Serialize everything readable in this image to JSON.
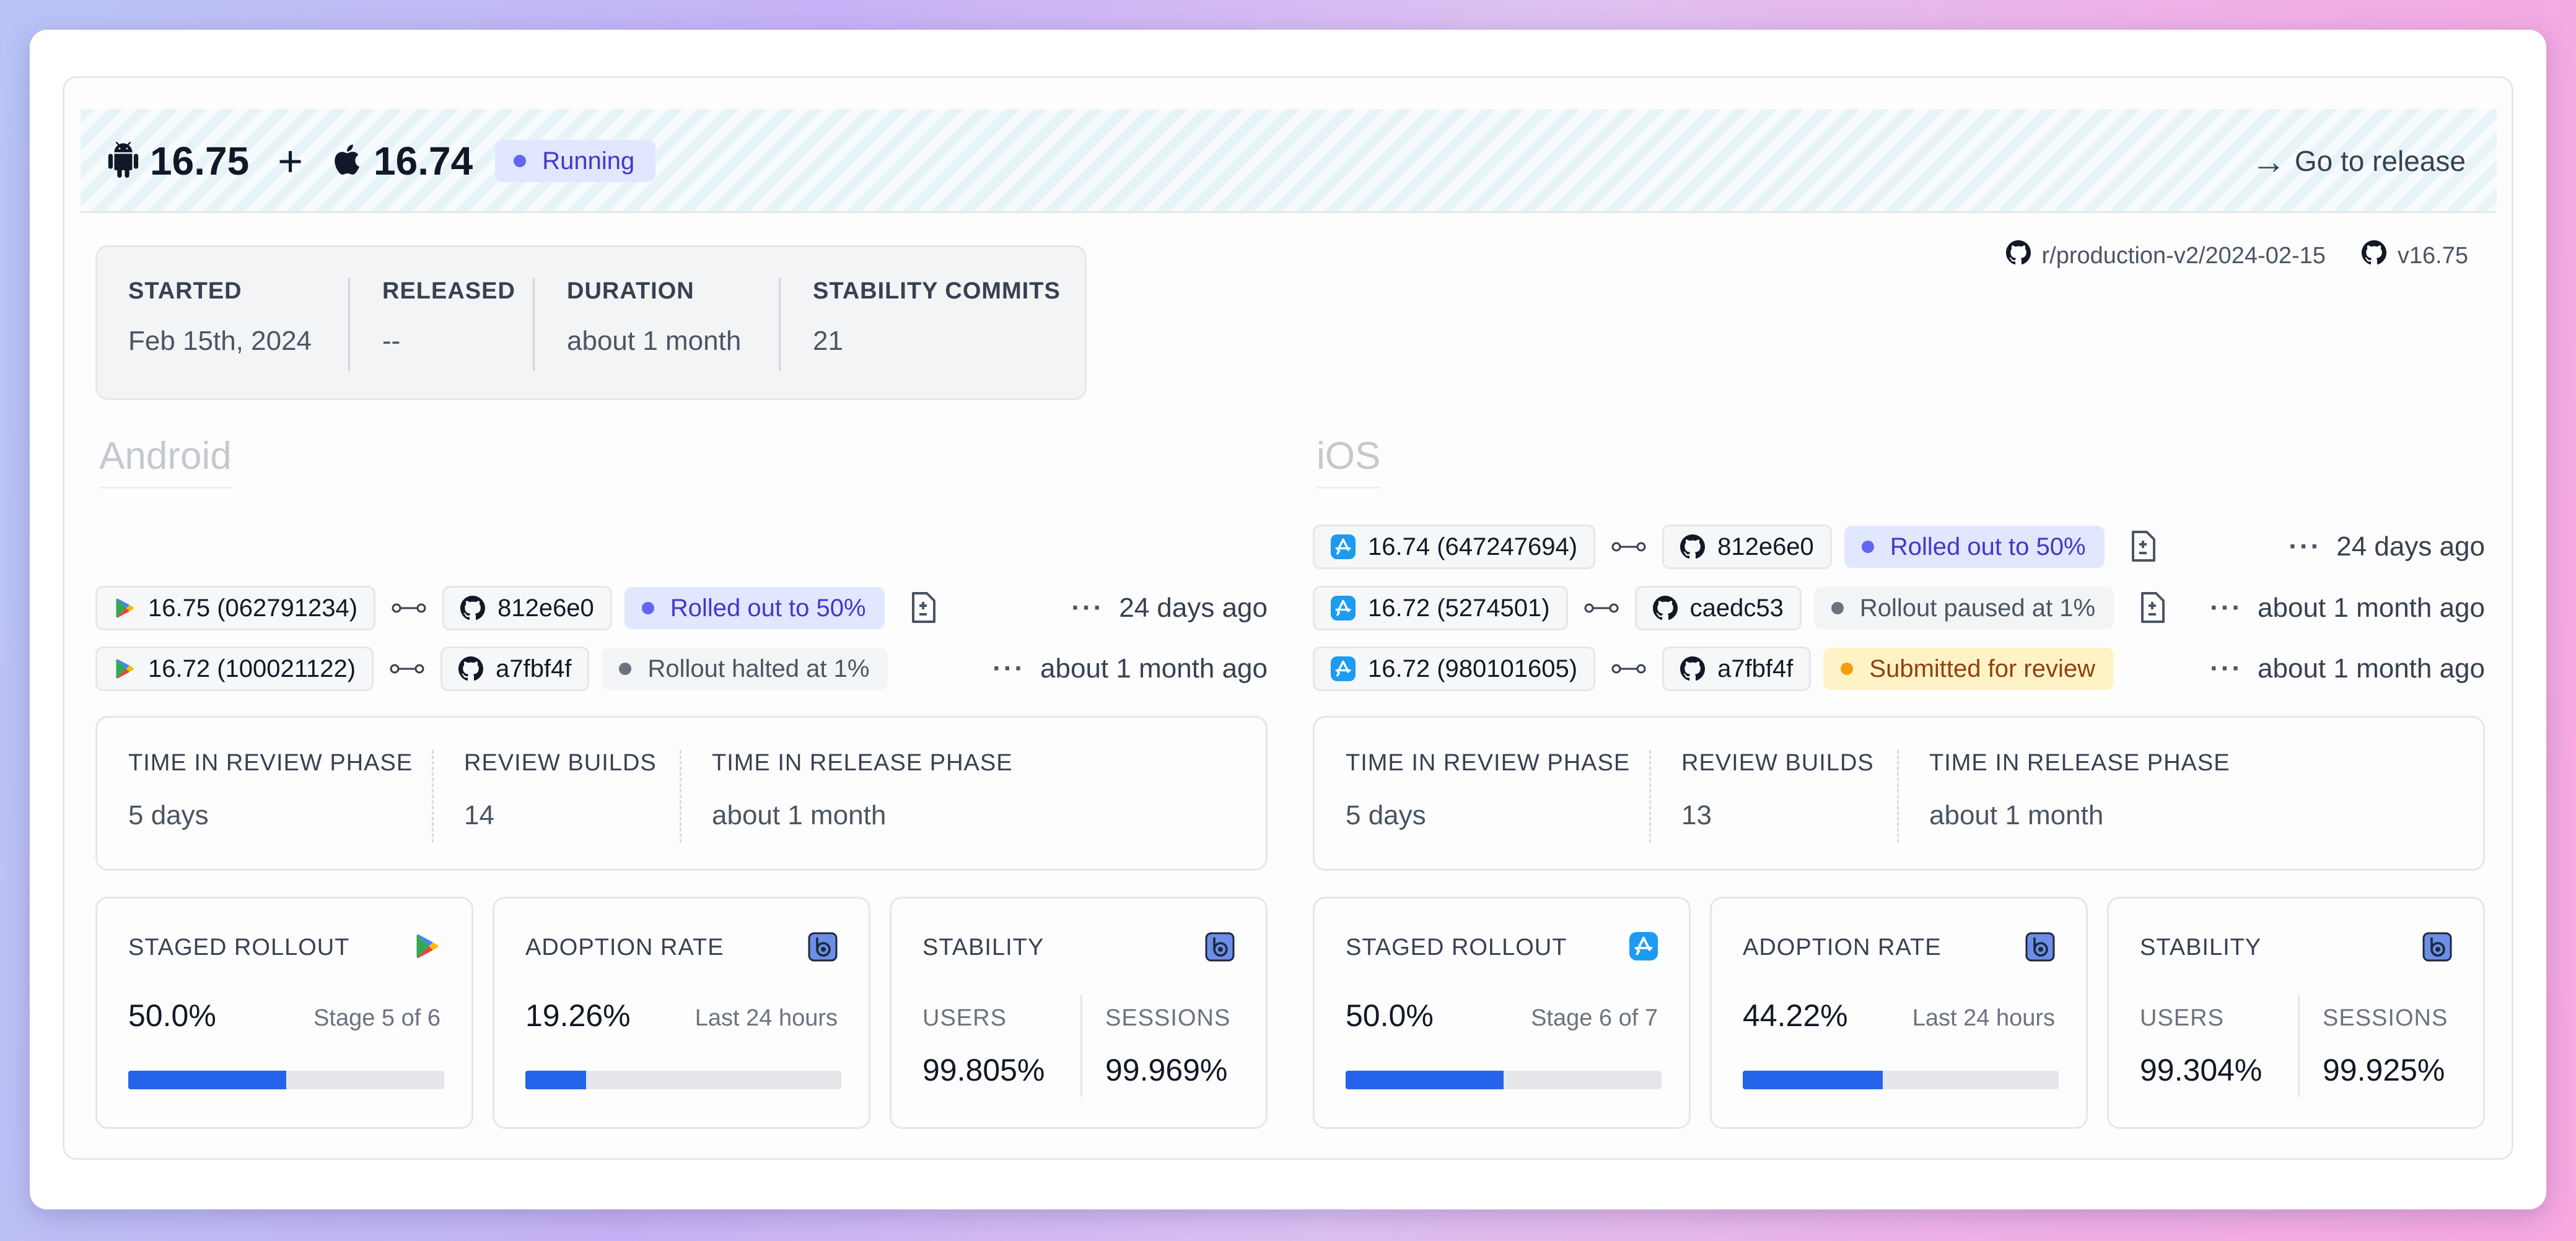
{
  "header": {
    "android_version": "16.75",
    "plus": "+",
    "ios_version": "16.74",
    "status": "Running",
    "go_to_release": "Go to release"
  },
  "meta": {
    "started_label": "STARTED",
    "started_value": "Feb 15th, 2024",
    "released_label": "RELEASED",
    "released_value": "--",
    "duration_label": "DURATION",
    "duration_value": "about 1 month",
    "commits_label": "STABILITY COMMITS",
    "commits_value": "21"
  },
  "refs": {
    "branch": "r/production-v2/2024-02-15",
    "tag": "v16.75"
  },
  "android": {
    "title": "Android",
    "builds": [
      {
        "build": "16.75 (062791234)",
        "commit": "812e6e0",
        "status": "Rolled out to 50%",
        "time": "24 days ago"
      },
      {
        "build": "16.72 (100021122)",
        "commit": "a7fbf4f",
        "status": "Rollout halted at 1%",
        "time": "about 1 month ago"
      }
    ],
    "phase": {
      "review_label": "TIME IN REVIEW PHASE",
      "review_value": "5 days",
      "builds_label": "REVIEW BUILDS",
      "builds_value": "14",
      "release_label": "TIME IN RELEASE PHASE",
      "release_value": "about 1 month"
    },
    "staged": {
      "label": "STAGED ROLLOUT",
      "value": "50.0%",
      "sub": "Stage 5 of 6",
      "progress": 0.5
    },
    "adoption": {
      "label": "ADOPTION RATE",
      "value": "19.26%",
      "sub": "Last 24 hours",
      "progress": 0.1926
    },
    "stability": {
      "label": "STABILITY",
      "users_label": "USERS",
      "users_value": "99.805%",
      "sessions_label": "SESSIONS",
      "sessions_value": "99.969%"
    }
  },
  "ios": {
    "title": "iOS",
    "builds": [
      {
        "build": "16.74 (647247694)",
        "commit": "812e6e0",
        "status": "Rolled out to 50%",
        "time": "24 days ago"
      },
      {
        "build": "16.72 (5274501)",
        "commit": "caedc53",
        "status": "Rollout paused at 1%",
        "time": "about 1 month ago"
      },
      {
        "build": "16.72 (980101605)",
        "commit": "a7fbf4f",
        "status": "Submitted for review",
        "time": "about 1 month ago"
      }
    ],
    "phase": {
      "review_label": "TIME IN REVIEW PHASE",
      "review_value": "5 days",
      "builds_label": "REVIEW BUILDS",
      "builds_value": "13",
      "release_label": "TIME IN RELEASE PHASE",
      "release_value": "about 1 month"
    },
    "staged": {
      "label": "STAGED ROLLOUT",
      "value": "50.0%",
      "sub": "Stage 6 of 7",
      "progress": 0.5
    },
    "adoption": {
      "label": "ADOPTION RATE",
      "value": "44.22%",
      "sub": "Last 24 hours",
      "progress": 0.4422
    },
    "stability": {
      "label": "STABILITY",
      "users_label": "USERS",
      "users_value": "99.304%",
      "sessions_label": "SESSIONS",
      "sessions_value": "99.925%"
    }
  },
  "colors": {
    "accent_blue": "#2563eb",
    "status_blue": "#6366f1",
    "status_gray": "#6b7280",
    "status_amber": "#f59e0b"
  },
  "icons": {
    "android": "android-icon",
    "apple": "apple-icon",
    "github": "github-icon",
    "play_store": "play-store-icon",
    "app_store": "app-store-icon",
    "bitrise": "bitrise-icon",
    "link": "link-icon",
    "doc": "file-diff-icon",
    "more": "more-dots-icon",
    "arrow": "arrow-right-icon"
  }
}
